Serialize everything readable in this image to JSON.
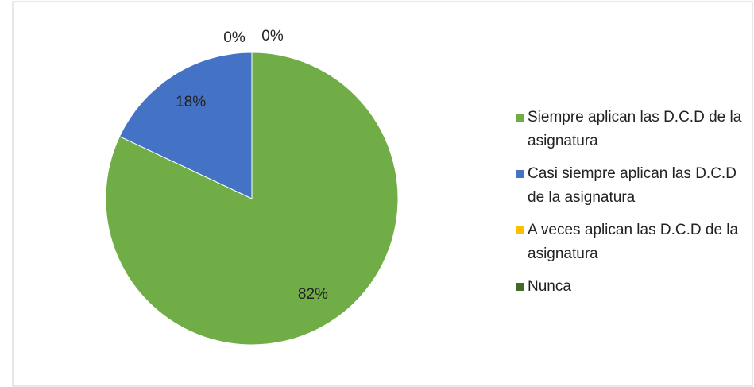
{
  "chart_data": {
    "type": "pie",
    "categories": [
      "Siempre aplican las D.C.D de la asignatura",
      "Casi siempre aplican las D.C.D de la asignatura",
      "A veces aplican las D.C.D de la asignatura",
      "Nunca"
    ],
    "values": [
      82,
      18,
      0,
      0
    ],
    "value_labels": [
      "82%",
      "18%",
      "0%",
      "0%"
    ],
    "colors": [
      "#70ad47",
      "#4472c4",
      "#ffc000",
      "#43682b"
    ],
    "legend": "right"
  }
}
